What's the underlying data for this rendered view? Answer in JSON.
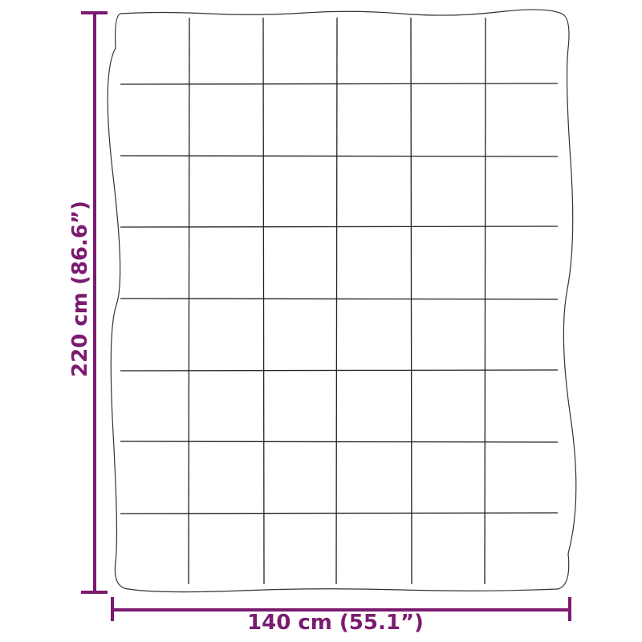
{
  "dimensions": {
    "height_label": "220 cm (86.6”)",
    "width_label": "140 cm (55.1”)"
  },
  "colors": {
    "dimension": "#7b1b6f",
    "outline": "#333333"
  }
}
